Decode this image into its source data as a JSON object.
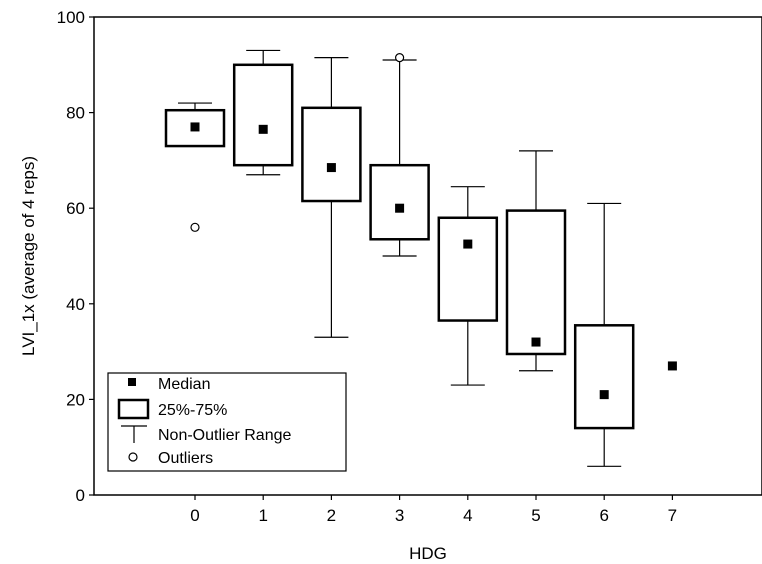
{
  "chart_data": {
    "type": "boxplot",
    "xlabel": "HDG",
    "ylabel": "LVI_1x (average of 4 reps)",
    "ylim": [
      0,
      100
    ],
    "y_ticks": [
      0,
      20,
      40,
      60,
      80,
      100
    ],
    "x_ticks": [
      "0",
      "1",
      "2",
      "3",
      "4",
      "5",
      "6",
      "7"
    ],
    "grid": false,
    "legend_position": "bottom-left",
    "legend": {
      "median": "Median",
      "box": "25%-75%",
      "whisker": "Non-Outlier Range",
      "outlier": "Outliers"
    },
    "groups": [
      {
        "x": "0",
        "median": 77,
        "q1": 73,
        "q3": 80.5,
        "min": 73,
        "max": 82,
        "outliers": [
          56
        ]
      },
      {
        "x": "1",
        "median": 76.5,
        "q1": 69,
        "q3": 90,
        "min": 67,
        "max": 93,
        "outliers": []
      },
      {
        "x": "2",
        "median": 68.5,
        "q1": 61.5,
        "q3": 81,
        "min": 33,
        "max": 91.5,
        "outliers": []
      },
      {
        "x": "3",
        "median": 60,
        "q1": 53.5,
        "q3": 69,
        "min": 50,
        "max": 91,
        "outliers": [
          91.5
        ]
      },
      {
        "x": "4",
        "median": 52.5,
        "q1": 36.5,
        "q3": 58,
        "min": 23,
        "max": 64.5,
        "outliers": []
      },
      {
        "x": "5",
        "median": 32,
        "q1": 29.5,
        "q3": 59.5,
        "min": 26,
        "max": 72,
        "outliers": []
      },
      {
        "x": "6",
        "median": 21,
        "q1": 14,
        "q3": 35.5,
        "min": 6,
        "max": 61,
        "outliers": []
      },
      {
        "x": "7",
        "median": 27,
        "q1": null,
        "q3": null,
        "min": null,
        "max": null,
        "outliers": []
      }
    ]
  }
}
